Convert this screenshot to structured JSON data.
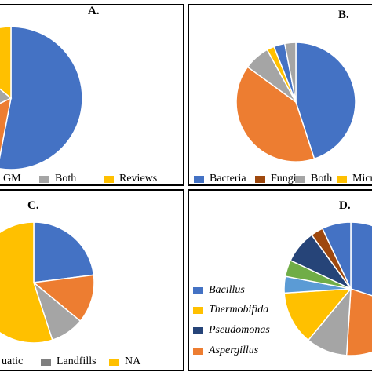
{
  "colors": {
    "blue": "#4472C4",
    "orange": "#ED7D31",
    "gray": "#A5A5A5",
    "yellow": "#FFC000",
    "navy": "#264478",
    "green": "#70AD47",
    "brown": "#9E480E",
    "light_blue": "#5B9BD5"
  },
  "panels": {
    "a": {
      "label": "A.",
      "legend": [
        "GM",
        "Both",
        "Reviews"
      ]
    },
    "b": {
      "label": "B.",
      "legend": [
        "Bacteria",
        "Fungi",
        "Both",
        "Micr"
      ]
    },
    "c": {
      "label": "C.",
      "legend": [
        "uatic",
        "Landfills",
        "NA"
      ]
    },
    "d": {
      "label": "D.",
      "legend": [
        "Bacillus",
        "Thermobifida",
        "Pseudomonas",
        "Aspergillus"
      ]
    }
  },
  "chart_data": [
    {
      "panel": "A.",
      "type": "pie",
      "slices": [
        {
          "value": 53,
          "color": "#4472C4"
        },
        {
          "value": 15,
          "color": "#ED7D31"
        },
        {
          "value": 18,
          "color": "#A5A5A5"
        },
        {
          "value": 14,
          "color": "#FFC000"
        }
      ],
      "legend": [
        "GM",
        "Both",
        "Reviews"
      ]
    },
    {
      "panel": "B.",
      "type": "pie",
      "slices": [
        {
          "value": 45,
          "color": "#4472C4"
        },
        {
          "value": 40,
          "color": "#ED7D31"
        },
        {
          "value": 7,
          "color": "#A5A5A5"
        },
        {
          "value": 2,
          "color": "#FFC000"
        },
        {
          "value": 3,
          "color": "#4472C4"
        },
        {
          "value": 3,
          "color": "#A5A5A5"
        }
      ],
      "legend": [
        "Bacteria",
        "Fungi",
        "Both",
        "Micr"
      ]
    },
    {
      "panel": "C.",
      "type": "pie",
      "slices": [
        {
          "value": 23,
          "color": "#4472C4"
        },
        {
          "value": 13,
          "color": "#ED7D31"
        },
        {
          "value": 9,
          "color": "#A5A5A5"
        },
        {
          "value": 55,
          "color": "#FFC000"
        }
      ],
      "legend": [
        "uatic",
        "Landfills",
        "NA"
      ]
    },
    {
      "panel": "D.",
      "type": "pie",
      "slices": [
        {
          "value": 30,
          "color": "#4472C4"
        },
        {
          "value": 21,
          "color": "#ED7D31"
        },
        {
          "value": 10,
          "color": "#A5A5A5"
        },
        {
          "value": 13,
          "color": "#FFC000"
        },
        {
          "value": 4,
          "color": "#5B9BD5"
        },
        {
          "value": 4,
          "color": "#70AD47"
        },
        {
          "value": 8,
          "color": "#264478"
        },
        {
          "value": 3,
          "color": "#9E480E"
        },
        {
          "value": 7,
          "color": "#4472C4"
        }
      ],
      "legend": [
        "Bacillus",
        "Thermobifida",
        "Pseudomonas",
        "Aspergillus"
      ]
    }
  ]
}
